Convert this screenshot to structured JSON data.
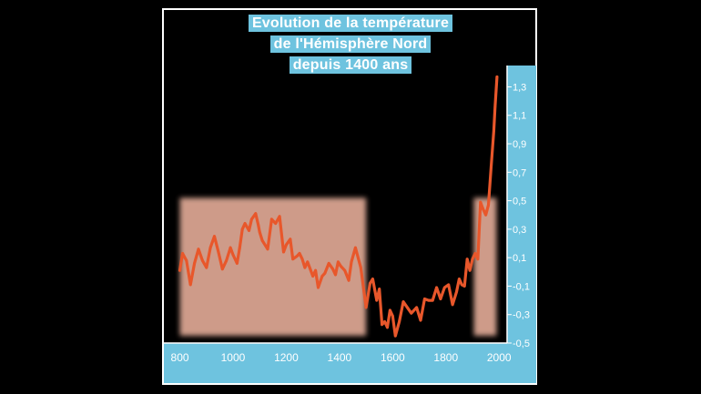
{
  "chart_data": {
    "type": "line",
    "title_lines": [
      "Evolution de la température",
      "de l'Hémisphère Nord",
      "depuis 1400 ans"
    ],
    "xlim": [
      740,
      2030
    ],
    "ylim": [
      -0.5,
      1.45
    ],
    "x_ticks": [
      800,
      1000,
      1200,
      1400,
      1600,
      1800,
      2000
    ],
    "x_tick_labels": [
      "800",
      "1000",
      "1200",
      "1400",
      "1600",
      "1800",
      "2000"
    ],
    "y_ticks": [
      1.3,
      1.1,
      0.9,
      0.7,
      0.5,
      0.3,
      0.1,
      -0.1,
      -0.3,
      -0.5
    ],
    "y_tick_labels": [
      "1,3",
      "1,1",
      "0,9",
      "0,7",
      "0,5",
      "0,3",
      "0,1",
      "-0,1",
      "-0,3",
      "-0,5"
    ],
    "highlight_periods": [
      [
        800,
        1500
      ],
      [
        1905,
        1990
      ]
    ],
    "series": [
      {
        "color": "#e8572b",
        "x": [
          800,
          810,
          825,
          840,
          855,
          870,
          885,
          900,
          915,
          930,
          945,
          960,
          975,
          990,
          1000,
          1015,
          1025,
          1035,
          1045,
          1060,
          1070,
          1085,
          1095,
          1100,
          1110,
          1120,
          1130,
          1145,
          1160,
          1175,
          1190,
          1200,
          1215,
          1225,
          1240,
          1250,
          1260,
          1270,
          1280,
          1300,
          1310,
          1320,
          1335,
          1345,
          1360,
          1375,
          1385,
          1395,
          1405,
          1420,
          1435,
          1445,
          1460,
          1480,
          1500,
          1515,
          1525,
          1540,
          1550,
          1560,
          1570,
          1580,
          1590,
          1600,
          1610,
          1625,
          1640,
          1655,
          1670,
          1690,
          1705,
          1720,
          1735,
          1750,
          1765,
          1780,
          1795,
          1810,
          1825,
          1840,
          1850,
          1860,
          1870,
          1880,
          1890,
          1900,
          1910,
          1920,
          1930,
          1940,
          1950,
          1960,
          1970,
          1980,
          1985,
          1992
        ],
        "values": [
          0.01,
          0.13,
          0.08,
          -0.09,
          0.06,
          0.16,
          0.08,
          0.03,
          0.17,
          0.25,
          0.14,
          0.02,
          0.08,
          0.17,
          0.12,
          0.06,
          0.17,
          0.3,
          0.34,
          0.29,
          0.37,
          0.41,
          0.33,
          0.28,
          0.22,
          0.19,
          0.16,
          0.37,
          0.34,
          0.39,
          0.14,
          0.19,
          0.23,
          0.09,
          0.11,
          0.13,
          0.09,
          0.03,
          0.07,
          -0.03,
          0.01,
          -0.11,
          -0.03,
          -0.01,
          0.06,
          0.02,
          -0.02,
          0.07,
          0.04,
          0.01,
          -0.06,
          0.07,
          0.17,
          0.03,
          -0.25,
          -0.08,
          -0.05,
          -0.2,
          -0.12,
          -0.37,
          -0.35,
          -0.39,
          -0.27,
          -0.31,
          -0.45,
          -0.35,
          -0.21,
          -0.25,
          -0.29,
          -0.25,
          -0.34,
          -0.19,
          -0.2,
          -0.2,
          -0.11,
          -0.19,
          -0.11,
          -0.09,
          -0.23,
          -0.14,
          -0.05,
          -0.09,
          -0.1,
          0.09,
          0.01,
          0.09,
          0.13,
          0.09,
          0.49,
          0.44,
          0.4,
          0.47,
          0.74,
          0.99,
          1.16,
          1.37
        ]
      }
    ]
  }
}
